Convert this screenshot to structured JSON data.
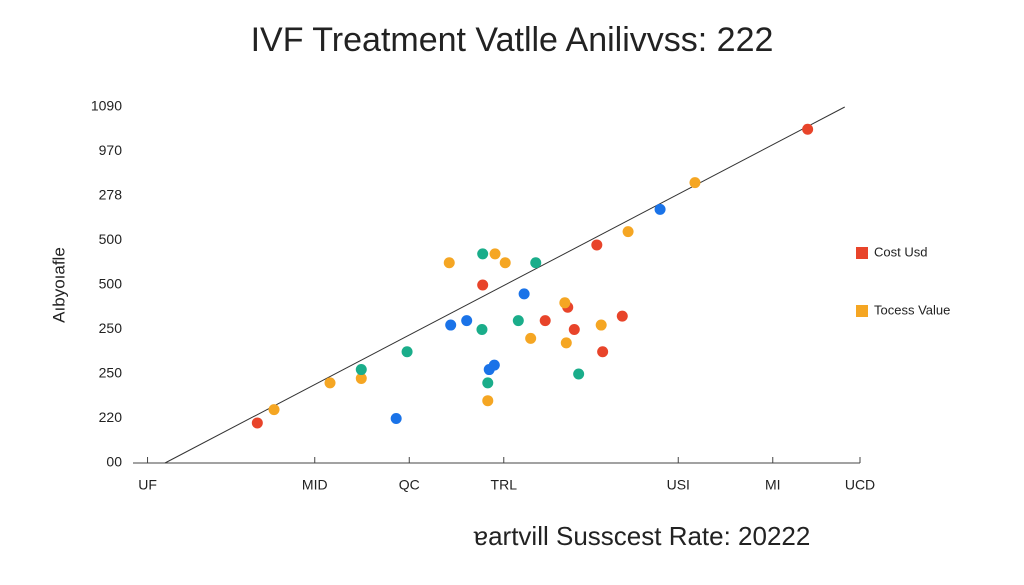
{
  "chart_data": {
    "type": "scatter",
    "title": "IVF Treatment Vatlle Anilivvss:  222",
    "x_label": "ɐartvill Susscest Rate:  20222",
    "y_label": "Aıbyoıafle",
    "xlim": [
      0,
      100
    ],
    "xticks": [
      {
        "value": 2,
        "label": "UF"
      },
      {
        "value": 25,
        "label": "MID"
      },
      {
        "value": 38,
        "label": "QC"
      },
      {
        "value": 51,
        "label": "TRL"
      },
      {
        "value": 75,
        "label": "USI"
      },
      {
        "value": 88,
        "label": "MI"
      },
      {
        "value": 100,
        "label": "UCD"
      }
    ],
    "ylim": [
      0,
      8
    ],
    "yticks": [
      {
        "value": 0,
        "label": "00"
      },
      {
        "value": 1,
        "label": "220"
      },
      {
        "value": 2,
        "label": "250"
      },
      {
        "value": 3,
        "label": "250"
      },
      {
        "value": 4,
        "label": "500"
      },
      {
        "value": 5,
        "label": "500"
      },
      {
        "value": 6,
        "label": "278"
      },
      {
        "value": 7,
        "label": "970"
      },
      {
        "value": 8,
        "label": "1090"
      }
    ],
    "legend": "right",
    "trendline": {
      "color": "#333333",
      "x": [
        4.4,
        97.9
      ],
      "y": [
        0,
        8
      ]
    },
    "series": [
      {
        "name": "Cost Usd",
        "color": "#e8442a",
        "x": [
          17.1,
          48.1,
          56.7,
          59.8,
          60.7,
          63.8,
          64.6,
          67.3,
          92.8
        ],
        "values": [
          0.9,
          4.0,
          3.2,
          3.5,
          3.0,
          4.9,
          2.5,
          3.3,
          7.5
        ]
      },
      {
        "name": "Tocess Value",
        "color": "#f5a623",
        "x": [
          19.4,
          27.1,
          31.4,
          43.5,
          48.8,
          49.8,
          51.2,
          54.7,
          59.4,
          59.6,
          64.4,
          68.1,
          77.3
        ],
        "values": [
          1.2,
          1.8,
          1.9,
          4.5,
          1.4,
          4.7,
          4.5,
          2.8,
          3.6,
          2.7,
          3.1,
          5.2,
          6.3
        ]
      },
      {
        "color": "#1aad8a",
        "x": [
          31.4,
          37.7,
          48.0,
          48.1,
          48.8,
          53.0,
          55.4,
          61.3
        ],
        "values": [
          2.1,
          2.5,
          3.0,
          4.7,
          1.8,
          3.2,
          4.5,
          2.0
        ]
      },
      {
        "color": "#1a73e8",
        "x": [
          36.2,
          43.7,
          45.9,
          49.0,
          49.7,
          53.8,
          72.5
        ],
        "values": [
          1.0,
          3.1,
          3.2,
          2.1,
          2.2,
          3.8,
          5.7
        ]
      }
    ]
  }
}
